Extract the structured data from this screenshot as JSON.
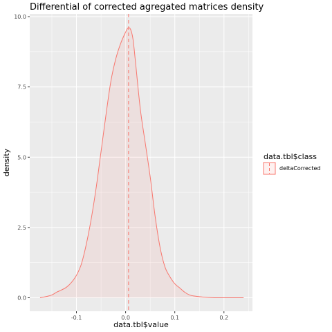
{
  "chart_data": {
    "type": "area",
    "title": "Differential of corrected agregated matrices density",
    "xlabel": "data.tbl$value",
    "ylabel": "density",
    "xlim": [
      -0.195,
      0.258
    ],
    "ylim": [
      -0.48,
      10.1
    ],
    "x_ticks": [
      -0.1,
      0.0,
      0.1,
      0.2
    ],
    "x_tick_labels": [
      "-0.1",
      "0.0",
      "0.1",
      "0.2"
    ],
    "y_ticks": [
      0.0,
      2.5,
      5.0,
      7.5,
      10.0
    ],
    "y_tick_labels": [
      "0.0",
      "2.5",
      "5.0",
      "7.5",
      "10.0"
    ],
    "grid": true,
    "legend": {
      "title": "data.tbl$class",
      "position": "right",
      "entries": [
        "deltaCorrected"
      ]
    },
    "colors": {
      "line": "#f8766d",
      "fill": "#f8766d",
      "fill_opacity": 0.1,
      "panel_bg": "#ebebeb",
      "grid": "#ffffff"
    },
    "vline": {
      "x": 0.006,
      "style": "dashed",
      "color": "#f8766d"
    },
    "series": [
      {
        "name": "deltaCorrected",
        "x": [
          -0.174,
          -0.16,
          -0.15,
          -0.14,
          -0.13,
          -0.12,
          -0.11,
          -0.1,
          -0.09,
          -0.08,
          -0.07,
          -0.06,
          -0.05,
          -0.04,
          -0.03,
          -0.02,
          -0.01,
          0.0,
          0.005,
          0.01,
          0.015,
          0.02,
          0.03,
          0.04,
          0.05,
          0.06,
          0.07,
          0.08,
          0.09,
          0.1,
          0.11,
          0.12,
          0.13,
          0.14,
          0.15,
          0.16,
          0.17,
          0.18,
          0.19,
          0.2,
          0.21,
          0.22,
          0.24
        ],
        "y": [
          0.0,
          0.05,
          0.1,
          0.2,
          0.28,
          0.38,
          0.55,
          0.8,
          1.2,
          1.9,
          2.8,
          3.9,
          5.2,
          6.5,
          7.7,
          8.5,
          9.05,
          9.45,
          9.6,
          9.55,
          9.2,
          8.4,
          6.7,
          5.5,
          4.3,
          2.9,
          1.8,
          1.1,
          0.75,
          0.5,
          0.35,
          0.2,
          0.1,
          0.06,
          0.04,
          0.02,
          0.01,
          0.0,
          0.0,
          0.0,
          0.0,
          0.0,
          0.0
        ]
      }
    ]
  }
}
